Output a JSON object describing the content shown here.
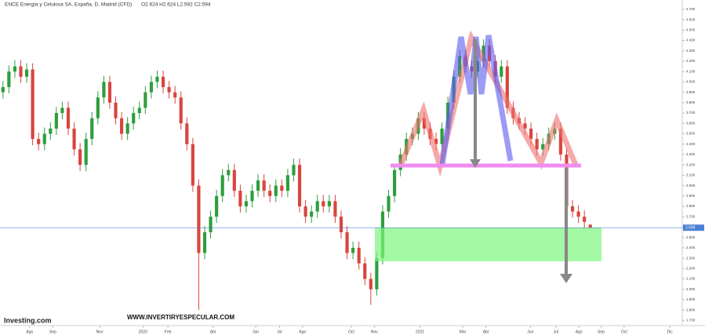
{
  "chart_data": {
    "type": "candlestick",
    "title": "ENCE Energía y Celulosa SA, España, D, Madrid (CFD)",
    "ohlc_text": "O2.624 H2.624 L2.592 C2.594",
    "brand": "Investing.com",
    "watermark": "WWW.INVERTIRYESPECULAR.COM",
    "last_price": 2.594,
    "up_color": "#2e9e3e",
    "down_color": "#d9453d",
    "last_price_color": "#4a7fd4",
    "xlim": [
      -0.5,
      114.5
    ],
    "ylim": [
      1.65,
      4.79
    ],
    "xticks": [
      {
        "value": 4.5,
        "label": "Ago"
      },
      {
        "value": 8.4,
        "label": "Sep"
      },
      {
        "value": 16.3,
        "label": "Nov"
      },
      {
        "value": 23.6,
        "label": "2020"
      },
      {
        "value": 27.8,
        "label": "Feb"
      },
      {
        "value": 35.4,
        "label": "Abr"
      },
      {
        "value": 42.6,
        "label": "Jun"
      },
      {
        "value": 46.6,
        "label": "Jul"
      },
      {
        "value": 50.5,
        "label": "Ago"
      },
      {
        "value": 58.7,
        "label": "Oct"
      },
      {
        "value": 62.6,
        "label": "Nov"
      },
      {
        "value": 70.3,
        "label": "2021"
      },
      {
        "value": 77.5,
        "label": "Mar"
      },
      {
        "value": 81.4,
        "label": "Abr"
      },
      {
        "value": 88.9,
        "label": "Jun"
      },
      {
        "value": 93.2,
        "label": "Jul"
      },
      {
        "value": 97.1,
        "label": "Ago"
      },
      {
        "value": 100.8,
        "label": "Sep"
      },
      {
        "value": 104.7,
        "label": "Oct"
      },
      {
        "value": 112.4,
        "label": "Dic"
      }
    ],
    "yticks": [
      {
        "value": 1.7,
        "label": "1.700"
      },
      {
        "value": 1.8,
        "label": "1.800"
      },
      {
        "value": 1.9,
        "label": "1.900"
      },
      {
        "value": 2.0,
        "label": "2.000"
      },
      {
        "value": 2.1,
        "label": "2.100"
      },
      {
        "value": 2.2,
        "label": "2.200"
      },
      {
        "value": 2.3,
        "label": "2.300"
      },
      {
        "value": 2.4,
        "label": "2.400"
      },
      {
        "value": 2.5,
        "label": "2.500"
      },
      {
        "value": 2.6,
        "label": "2.600"
      },
      {
        "value": 2.7,
        "label": "2.700"
      },
      {
        "value": 2.8,
        "label": "2.800"
      },
      {
        "value": 2.9,
        "label": "2.900"
      },
      {
        "value": 3.0,
        "label": "3.000"
      },
      {
        "value": 3.1,
        "label": "3.100"
      },
      {
        "value": 3.2,
        "label": "3.200"
      },
      {
        "value": 3.3,
        "label": "3.300"
      },
      {
        "value": 3.4,
        "label": "3.400"
      },
      {
        "value": 3.5,
        "label": "3.500"
      },
      {
        "value": 3.6,
        "label": "3.600"
      },
      {
        "value": 3.7,
        "label": "3.700"
      },
      {
        "value": 3.8,
        "label": "3.800"
      },
      {
        "value": 3.9,
        "label": "3.900"
      },
      {
        "value": 4.0,
        "label": "4.000"
      },
      {
        "value": 4.1,
        "label": "4.100"
      },
      {
        "value": 4.2,
        "label": "4.200"
      },
      {
        "value": 4.3,
        "label": "4.300"
      },
      {
        "value": 4.4,
        "label": "4.400"
      },
      {
        "value": 4.5,
        "label": "4.500"
      },
      {
        "value": 4.6,
        "label": "4.600"
      },
      {
        "value": 4.7,
        "label": "4.700"
      }
    ],
    "open": [
      3.9,
      3.95,
      4.1,
      4.15,
      4.05,
      4.12,
      3.45,
      3.4,
      3.5,
      3.55,
      3.7,
      3.75,
      3.55,
      3.35,
      3.2,
      3.45,
      3.65,
      3.85,
      4.0,
      3.8,
      3.65,
      3.5,
      3.6,
      3.7,
      3.75,
      3.9,
      4.0,
      4.05,
      3.95,
      3.9,
      3.85,
      3.6,
      3.4,
      3.0,
      2.35,
      2.55,
      2.7,
      2.9,
      3.1,
      3.15,
      2.95,
      2.8,
      2.85,
      2.95,
      3.05,
      2.95,
      2.9,
      3.0,
      2.95,
      3.1,
      3.2,
      2.8,
      2.7,
      2.75,
      2.85,
      2.8,
      2.85,
      2.7,
      2.55,
      2.35,
      2.4,
      2.25,
      2.1,
      2.0,
      2.3,
      2.75,
      2.9,
      3.15,
      3.3,
      3.45,
      3.5,
      3.65,
      3.55,
      3.45,
      3.4,
      3.55,
      3.8,
      4.05,
      4.25,
      4.15,
      4.1,
      4.2,
      4.35,
      4.2,
      4.05,
      4.15,
      3.75,
      3.65,
      3.6,
      3.55,
      3.45,
      3.35,
      3.4,
      3.5,
      3.55,
      3.3,
      2.8,
      2.75,
      2.7,
      2.624
    ],
    "high": [
      4.01,
      4.16,
      4.21,
      4.21,
      4.18,
      4.18,
      3.51,
      3.56,
      3.61,
      3.76,
      3.81,
      3.81,
      3.61,
      3.41,
      3.51,
      3.71,
      3.91,
      4.06,
      4.06,
      3.86,
      3.71,
      3.66,
      3.76,
      3.81,
      3.96,
      4.06,
      4.11,
      4.11,
      4.01,
      3.96,
      3.91,
      3.66,
      3.46,
      3.06,
      2.61,
      2.76,
      2.96,
      3.16,
      3.21,
      3.21,
      3.01,
      2.91,
      3.01,
      3.11,
      3.11,
      3.01,
      3.06,
      3.06,
      3.16,
      3.26,
      3.26,
      2.86,
      2.81,
      2.91,
      2.91,
      2.91,
      2.91,
      2.76,
      2.61,
      2.46,
      2.46,
      2.31,
      2.16,
      2.36,
      2.81,
      2.96,
      3.21,
      3.36,
      3.51,
      3.56,
      3.71,
      3.71,
      3.61,
      3.51,
      3.61,
      3.86,
      4.11,
      4.31,
      4.31,
      4.21,
      4.26,
      4.41,
      4.41,
      4.26,
      4.21,
      4.21,
      3.81,
      3.71,
      3.66,
      3.61,
      3.51,
      3.46,
      3.56,
      3.61,
      3.61,
      3.36,
      2.86,
      2.81,
      2.76,
      2.624
    ],
    "low": [
      3.84,
      3.89,
      4.04,
      3.99,
      3.99,
      3.39,
      3.34,
      3.34,
      3.44,
      3.49,
      3.64,
      3.49,
      3.29,
      3.14,
      3.14,
      3.39,
      3.59,
      3.79,
      3.74,
      3.59,
      3.44,
      3.44,
      3.54,
      3.64,
      3.69,
      3.84,
      3.94,
      3.89,
      3.84,
      3.79,
      3.54,
      3.34,
      2.94,
      1.8,
      2.29,
      2.49,
      2.64,
      2.84,
      3.04,
      2.89,
      2.74,
      2.74,
      2.79,
      2.89,
      2.89,
      2.84,
      2.84,
      2.89,
      2.89,
      3.04,
      2.74,
      2.64,
      2.64,
      2.69,
      2.74,
      2.74,
      2.64,
      2.49,
      2.29,
      2.29,
      2.19,
      2.04,
      1.85,
      1.94,
      2.24,
      2.69,
      2.84,
      3.09,
      3.24,
      3.39,
      3.44,
      3.49,
      3.39,
      3.34,
      3.34,
      3.49,
      3.74,
      3.99,
      4.09,
      4.04,
      4.04,
      4.14,
      4.14,
      3.99,
      3.99,
      3.69,
      3.59,
      3.54,
      3.49,
      3.39,
      3.29,
      3.29,
      3.34,
      3.44,
      3.24,
      2.74,
      2.69,
      2.64,
      2.59,
      2.592
    ],
    "close": [
      3.95,
      4.1,
      4.15,
      4.05,
      4.12,
      3.45,
      3.4,
      3.5,
      3.55,
      3.7,
      3.75,
      3.55,
      3.35,
      3.2,
      3.45,
      3.65,
      3.85,
      4.0,
      3.8,
      3.65,
      3.5,
      3.6,
      3.7,
      3.75,
      3.9,
      4.0,
      4.05,
      3.95,
      3.9,
      3.85,
      3.6,
      3.4,
      3.0,
      2.35,
      2.55,
      2.7,
      2.9,
      3.1,
      3.15,
      2.95,
      2.8,
      2.85,
      2.95,
      3.05,
      2.95,
      2.9,
      3.0,
      2.95,
      3.1,
      3.2,
      2.8,
      2.7,
      2.75,
      2.85,
      2.8,
      2.85,
      2.7,
      2.55,
      2.35,
      2.4,
      2.25,
      2.1,
      2.0,
      2.3,
      2.75,
      2.9,
      3.15,
      3.3,
      3.45,
      3.5,
      3.65,
      3.55,
      3.45,
      3.4,
      3.55,
      3.8,
      4.05,
      4.25,
      4.15,
      4.1,
      4.2,
      4.35,
      4.2,
      4.05,
      4.15,
      3.75,
      3.65,
      3.6,
      3.55,
      3.45,
      3.35,
      3.4,
      3.5,
      3.55,
      3.3,
      2.8,
      2.75,
      2.7,
      2.65,
      2.594
    ]
  }
}
